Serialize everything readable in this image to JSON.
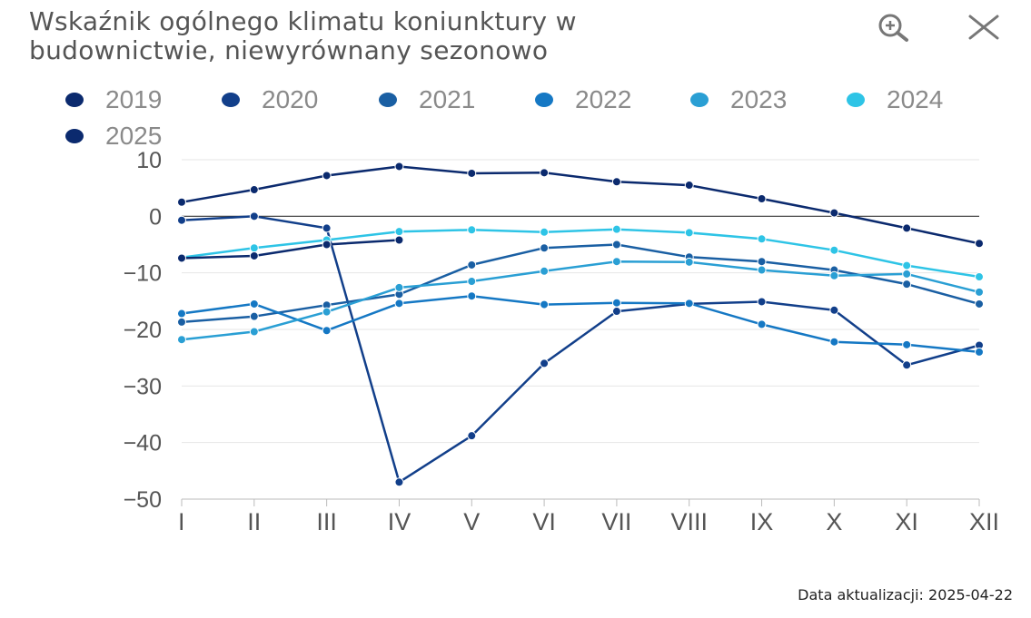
{
  "header": {
    "title_line1": "Wskaźnik ogólnego klimatu koniunktury w",
    "title_line2": "budownictwie, niewyrównany sezonowo"
  },
  "icons": {
    "zoom": "zoom-in-icon",
    "close": "close-icon"
  },
  "footer": {
    "update_text": "Data aktualizacji: 2025-04-22"
  },
  "chart_data": {
    "type": "line",
    "categories": [
      "I",
      "II",
      "III",
      "IV",
      "V",
      "VI",
      "VII",
      "VIII",
      "IX",
      "X",
      "XI",
      "XII"
    ],
    "ylim": [
      -50,
      10
    ],
    "yticks": [
      10,
      0,
      -10,
      -20,
      -30,
      -40,
      -50
    ],
    "ytick_labels": [
      "10",
      "0",
      "−10",
      "−20",
      "−30",
      "−40",
      "−50"
    ],
    "grid": true,
    "zero_line": true,
    "legend_position": "top",
    "series": [
      {
        "name": "2019",
        "color": "#0b2a6e",
        "values": [
          2.5,
          4.7,
          7.2,
          8.8,
          7.6,
          7.7,
          6.1,
          5.5,
          3.1,
          0.6,
          -2.1,
          -4.8
        ]
      },
      {
        "name": "2020",
        "color": "#123f8a",
        "values": [
          -0.7,
          0.0,
          -2.1,
          -47.0,
          -38.8,
          -26.0,
          -16.8,
          -15.5,
          -15.1,
          -16.6,
          -26.3,
          -22.8
        ]
      },
      {
        "name": "2021",
        "color": "#1a5fa3",
        "values": [
          -18.7,
          -17.7,
          -15.7,
          -13.8,
          -8.6,
          -5.6,
          -5.0,
          -7.2,
          -8.0,
          -9.5,
          -12.0,
          -15.5
        ]
      },
      {
        "name": "2022",
        "color": "#1578c4",
        "values": [
          -17.2,
          -15.5,
          -20.2,
          -15.4,
          -14.1,
          -15.6,
          -15.3,
          -15.4,
          -19.1,
          -22.2,
          -22.7,
          -24.0
        ]
      },
      {
        "name": "2023",
        "color": "#2a9fd4",
        "values": [
          -21.8,
          -20.4,
          -16.9,
          -12.6,
          -11.5,
          -9.7,
          -8.0,
          -8.1,
          -9.5,
          -10.5,
          -10.2,
          -13.4
        ]
      },
      {
        "name": "2024",
        "color": "#2ec4e6",
        "values": [
          -7.3,
          -5.6,
          -4.2,
          -2.7,
          -2.4,
          -2.8,
          -2.3,
          -2.9,
          -4.0,
          -6.0,
          -8.7,
          -10.7
        ]
      },
      {
        "name": "2025",
        "color": "#0b2a6e",
        "values": [
          -7.4,
          -7.0,
          -5.0,
          -4.2,
          null,
          null,
          null,
          null,
          null,
          null,
          null,
          null
        ]
      }
    ]
  }
}
